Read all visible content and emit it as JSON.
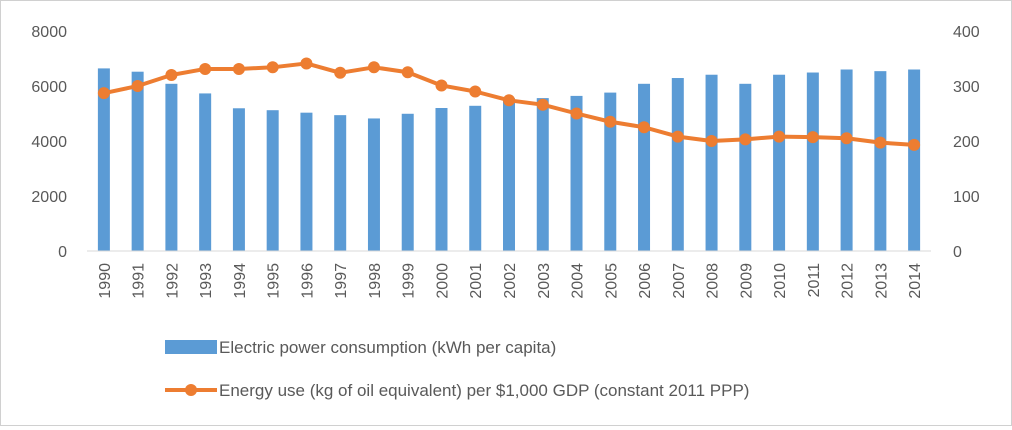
{
  "chart_data": {
    "type": "bar+line",
    "title": "",
    "x": [
      "1990",
      "1991",
      "1992",
      "1993",
      "1994",
      "1995",
      "1996",
      "1997",
      "1998",
      "1999",
      "2000",
      "2001",
      "2002",
      "2003",
      "2004",
      "2005",
      "2006",
      "2007",
      "2008",
      "2009",
      "2010",
      "2011",
      "2012",
      "2013",
      "2014"
    ],
    "left_axis": {
      "range": [
        0,
        8000
      ],
      "ticks": [
        "0",
        "2000",
        "4000",
        "6000",
        "8000"
      ]
    },
    "right_axis": {
      "range": [
        0,
        400
      ],
      "ticks": [
        "0",
        "100",
        "200",
        "300",
        "400"
      ]
    },
    "grid": false,
    "legend_position": "bottom",
    "series": [
      {
        "name": "Electric power consumption (kWh per capita)",
        "type": "bar",
        "axis": "left",
        "color": "#5b9bd5",
        "values": [
          6640,
          6520,
          6080,
          5730,
          5190,
          5120,
          5030,
          4940,
          4820,
          4990,
          5200,
          5280,
          5560,
          5560,
          5640,
          5760,
          6080,
          6290,
          6410,
          6080,
          6410,
          6490,
          6600,
          6540,
          6600
        ]
      },
      {
        "name": "Energy use (kg of oil equivalent) per $1,000 GDP (constant 2011 PPP)",
        "type": "line",
        "axis": "right",
        "color": "#ed7d31",
        "values": [
          287,
          300,
          320,
          331,
          331,
          334,
          341,
          324,
          334,
          325,
          301,
          290,
          274,
          266,
          250,
          235,
          225,
          208,
          200,
          203,
          208,
          207,
          205,
          197,
          193
        ]
      }
    ]
  }
}
